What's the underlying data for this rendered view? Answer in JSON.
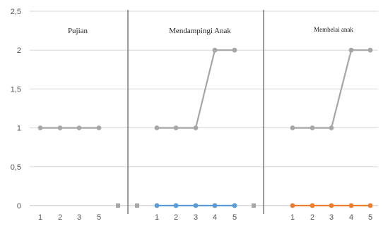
{
  "chart_data": {
    "type": "line",
    "ylim": [
      0,
      2.5
    ],
    "y_ticks": [
      "0",
      "0,5",
      "1",
      "1,5",
      "2",
      "2,5"
    ],
    "grid": true,
    "phases": [
      {
        "label": "Pujian",
        "x_labels": [
          "1",
          "2",
          "3",
          "5"
        ],
        "series": [
          {
            "color": "#a6a6a6",
            "values": [
              1,
              1,
              1,
              1
            ]
          }
        ],
        "stray_points": [
          0
        ]
      },
      {
        "label": "Mendampingi Anak",
        "x_labels": [
          "1",
          "2",
          "3",
          "4",
          "5"
        ],
        "series": [
          {
            "color": "#a6a6a6",
            "values": [
              1,
              1,
              1,
              2,
              2
            ]
          },
          {
            "color": "#5b9bd5",
            "values": [
              0,
              0,
              0,
              0,
              0
            ]
          }
        ],
        "stray_points": [
          0
        ]
      },
      {
        "label": "Membelai anak",
        "x_labels": [
          "1",
          "2",
          "3",
          "4",
          "5"
        ],
        "series": [
          {
            "color": "#a6a6a6",
            "values": [
              1,
              1,
              1,
              2,
              2
            ]
          },
          {
            "color": "#ed7d31",
            "values": [
              0,
              0,
              0,
              0,
              0
            ]
          }
        ],
        "stray_points": [
          0
        ]
      }
    ],
    "colors": {
      "grid": "#d9d9d9",
      "divider": "#595959",
      "axis": "#bfbfbf"
    }
  }
}
